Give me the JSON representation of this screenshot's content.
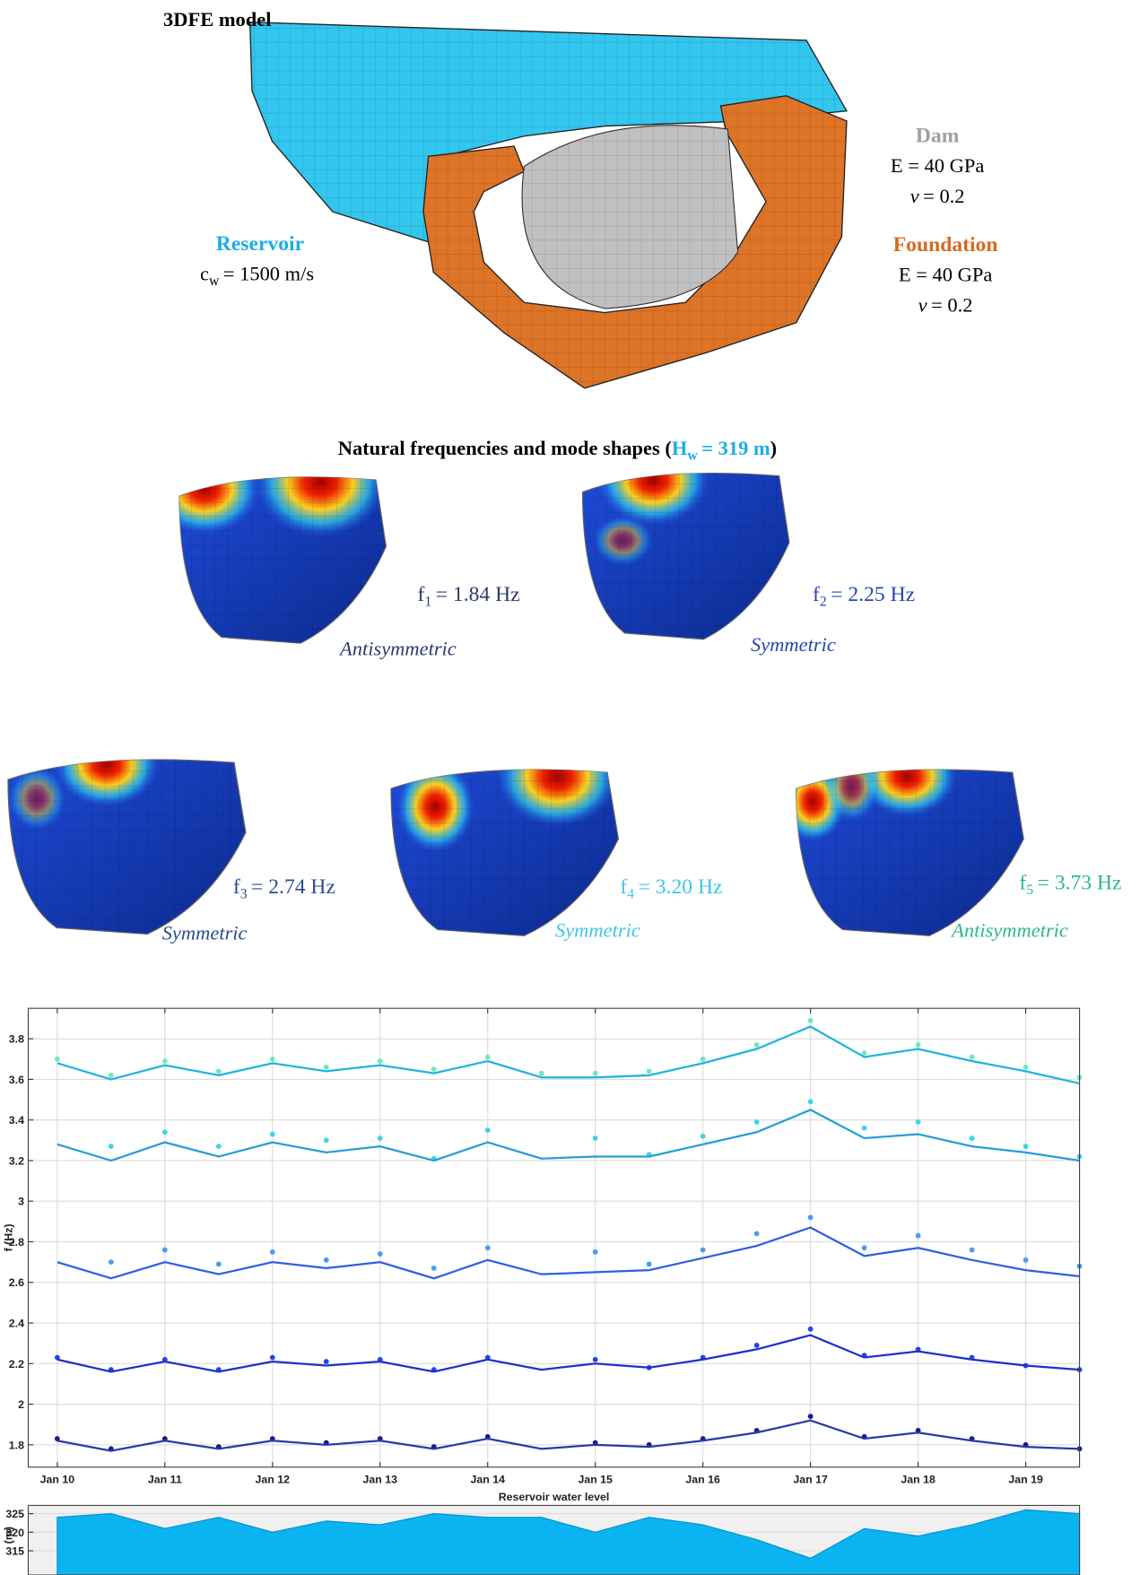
{
  "figure": {
    "model_title": "3DFE model",
    "reservoir": {
      "name": "Reservoir",
      "symbol": "c",
      "subscript": "w",
      "text": "= 1500 m/s"
    },
    "dam": {
      "name": "Dam",
      "modulus": "E = 40 GPa",
      "poisson_symbol": "ν",
      "poisson_text": "= 0.2"
    },
    "foundation": {
      "name": "Foundation",
      "modulus": "E = 40 GPa",
      "poisson_symbol": "ν",
      "poisson_text": "= 0.2"
    },
    "modes_title": {
      "prefix": "Natural frequencies and mode shapes (",
      "symbol": "H",
      "subscript": "w",
      "text": "= 319 m",
      "suffix": ")"
    },
    "modes": [
      {
        "symbol": "f",
        "subscript": "1",
        "text": "= 1.84 Hz",
        "shape": "Antisymmetric",
        "color": "#2c3b6e"
      },
      {
        "symbol": "f",
        "subscript": "2",
        "text": "= 2.25 Hz",
        "shape": "Symmetric",
        "color": "#2a45b4"
      },
      {
        "symbol": "f",
        "subscript": "3",
        "text": "= 2.74 Hz",
        "shape": "Symmetric",
        "color": "#2e4a8c"
      },
      {
        "symbol": "f",
        "subscript": "4",
        "text": "= 3.20 Hz",
        "shape": "Symmetric",
        "color": "#3ec6e8"
      },
      {
        "symbol": "f",
        "subscript": "5",
        "text": "= 3.73 Hz",
        "shape": "Antisymmetric",
        "color": "#2ab892"
      }
    ]
  },
  "chart_data": [
    {
      "type": "line",
      "y_label": "f (Hz)",
      "grid": true,
      "x": [
        10,
        10.5,
        11,
        11.5,
        12,
        12.5,
        13,
        13.5,
        14,
        14.5,
        15,
        15.5,
        16,
        16.5,
        17,
        17.5,
        18,
        18.5,
        19,
        19.5
      ],
      "xlim": [
        9.73,
        19.5
      ],
      "xticks": [
        {
          "value": 10,
          "label": "Jan 10"
        },
        {
          "value": 11,
          "label": "Jan 11"
        },
        {
          "value": 12,
          "label": "Jan 12"
        },
        {
          "value": 13,
          "label": "Jan 13"
        },
        {
          "value": 14,
          "label": "Jan 14"
        },
        {
          "value": 15,
          "label": "Jan 15"
        },
        {
          "value": 16,
          "label": "Jan 16"
        },
        {
          "value": 17,
          "label": "Jan 17"
        },
        {
          "value": 18,
          "label": "Jan 18"
        },
        {
          "value": 19,
          "label": "Jan 19"
        }
      ],
      "ylim": [
        1.69,
        3.95
      ],
      "yticks": [
        1.8,
        2,
        2.2,
        2.4,
        2.6,
        2.8,
        3,
        3.2,
        3.4,
        3.6,
        3.8
      ],
      "series": [
        {
          "mode": "markers",
          "color": "#6ee8c4",
          "values": [
            3.7,
            3.62,
            3.69,
            3.64,
            3.7,
            3.66,
            3.69,
            3.65,
            3.71,
            3.63,
            3.63,
            3.64,
            3.7,
            3.77,
            3.89,
            3.73,
            3.77,
            3.71,
            3.66,
            3.61
          ]
        },
        {
          "mode": "line",
          "color": "#22b4dc",
          "values": [
            3.68,
            3.6,
            3.67,
            3.62,
            3.68,
            3.64,
            3.67,
            3.63,
            3.69,
            3.61,
            3.61,
            3.62,
            3.68,
            3.75,
            3.86,
            3.71,
            3.75,
            3.69,
            3.64,
            3.58
          ]
        },
        {
          "mode": "markers",
          "color": "#3fd4e8",
          "values": [
            null,
            3.27,
            3.34,
            3.27,
            3.33,
            3.3,
            3.31,
            3.21,
            3.35,
            null,
            3.31,
            3.23,
            3.32,
            3.39,
            3.49,
            3.36,
            3.39,
            3.31,
            3.27,
            3.22
          ]
        },
        {
          "mode": "line",
          "color": "#289ed6",
          "values": [
            3.28,
            3.2,
            3.29,
            3.22,
            3.29,
            3.24,
            3.27,
            3.2,
            3.29,
            3.21,
            3.22,
            3.22,
            3.28,
            3.34,
            3.45,
            3.31,
            3.33,
            3.27,
            3.24,
            3.2
          ]
        },
        {
          "mode": "markers",
          "color": "#4a9cf0",
          "values": [
            null,
            2.7,
            2.76,
            2.69,
            2.75,
            2.71,
            2.74,
            2.67,
            2.77,
            null,
            2.75,
            2.69,
            2.76,
            2.84,
            2.92,
            2.77,
            2.83,
            2.76,
            2.71,
            2.68
          ]
        },
        {
          "mode": "line",
          "color": "#3060e0",
          "values": [
            2.7,
            2.62,
            2.7,
            2.64,
            2.7,
            2.67,
            2.7,
            2.62,
            2.71,
            2.64,
            2.65,
            2.66,
            2.72,
            2.78,
            2.87,
            2.73,
            2.77,
            2.71,
            2.66,
            2.63
          ]
        },
        {
          "mode": "markers",
          "color": "#2244ec",
          "values": [
            2.23,
            2.17,
            2.22,
            2.17,
            2.23,
            2.21,
            2.22,
            2.17,
            2.23,
            null,
            2.22,
            2.18,
            2.23,
            2.29,
            2.37,
            2.24,
            2.27,
            2.23,
            2.19,
            2.17
          ]
        },
        {
          "mode": "line",
          "color": "#2030c8",
          "values": [
            2.22,
            2.16,
            2.21,
            2.16,
            2.21,
            2.19,
            2.21,
            2.16,
            2.22,
            2.17,
            2.2,
            2.18,
            2.22,
            2.27,
            2.34,
            2.23,
            2.26,
            2.22,
            2.19,
            2.17
          ]
        },
        {
          "mode": "markers",
          "color": "#1a1a8c",
          "values": [
            1.83,
            1.78,
            1.83,
            1.79,
            1.83,
            1.81,
            1.83,
            1.79,
            1.84,
            null,
            1.81,
            1.8,
            1.83,
            1.87,
            1.94,
            1.84,
            1.87,
            1.83,
            1.8,
            1.78
          ]
        },
        {
          "mode": "line",
          "color": "#2a3aa8",
          "values": [
            1.82,
            1.77,
            1.82,
            1.78,
            1.82,
            1.8,
            1.82,
            1.78,
            1.83,
            1.78,
            1.8,
            1.79,
            1.82,
            1.86,
            1.92,
            1.83,
            1.86,
            1.82,
            1.79,
            1.78
          ]
        }
      ]
    },
    {
      "type": "area",
      "title": "Reservoir water level",
      "y_label": "(m)",
      "grid": true,
      "color": "#0ab4f0",
      "x": [
        10,
        10.5,
        11,
        11.5,
        12,
        12.5,
        13,
        13.5,
        14,
        14.5,
        15,
        15.5,
        16,
        16.5,
        17,
        17.5,
        18,
        18.5,
        19,
        19.5
      ],
      "xlim": [
        9.73,
        19.5
      ],
      "ylim": [
        308.5,
        327.2
      ],
      "yticks": [
        315,
        320,
        325
      ],
      "values": [
        324,
        325,
        321,
        324,
        320,
        323,
        322,
        325,
        324,
        324,
        320,
        324,
        322,
        318,
        313,
        321,
        319,
        322,
        326,
        325
      ]
    }
  ]
}
